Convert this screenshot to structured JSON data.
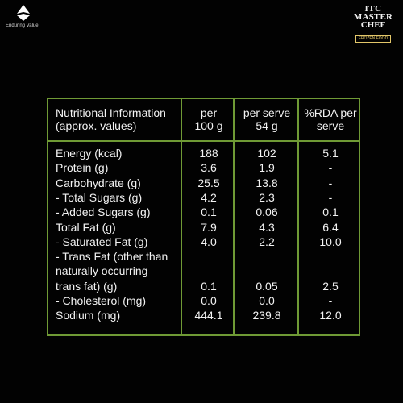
{
  "brand_left": {
    "logo": "ITC",
    "tagline": "Enduring Value"
  },
  "brand_right": {
    "line1": "ITC",
    "line2": "MASTER",
    "line3": "CHEF",
    "subline": "FROZEN FOOD"
  },
  "table": {
    "header": {
      "label": "Nutritional Information\n(approx. values)",
      "col1": "per\n100 g",
      "col2": "per serve\n54 g",
      "col3": "%RDA per\nserve"
    },
    "rows": [
      {
        "label": "Energy (kcal)",
        "v1": "188",
        "v2": "102",
        "v3": "5.1"
      },
      {
        "label": "Protein (g)",
        "v1": "3.6",
        "v2": "1.9",
        "v3": "-"
      },
      {
        "label": "Carbohydrate (g)",
        "v1": "25.5",
        "v2": "13.8",
        "v3": "-"
      },
      {
        "label": "- Total Sugars (g)",
        "v1": "4.2",
        "v2": "2.3",
        "v3": "-"
      },
      {
        "label": "- Added Sugars (g)",
        "v1": "0.1",
        "v2": "0.06",
        "v3": "0.1"
      },
      {
        "label": "Total Fat (g)",
        "v1": "7.9",
        "v2": "4.3",
        "v3": "6.4"
      },
      {
        "label": "- Saturated Fat (g)",
        "v1": "4.0",
        "v2": "2.2",
        "v3": "10.0"
      },
      {
        "label": "- Trans Fat (other than",
        "v1": "",
        "v2": "",
        "v3": ""
      },
      {
        "label": "naturally occurring",
        "v1": "",
        "v2": "",
        "v3": ""
      },
      {
        "label": "trans fat) (g)",
        "v1": "0.1",
        "v2": "0.05",
        "v3": "2.5"
      },
      {
        "label": "- Cholesterol (mg)",
        "v1": "0.0",
        "v2": "0.0",
        "v3": "-"
      },
      {
        "label": "Sodium (mg)",
        "v1": "444.1",
        "v2": "239.8",
        "v3": "12.0"
      }
    ]
  }
}
